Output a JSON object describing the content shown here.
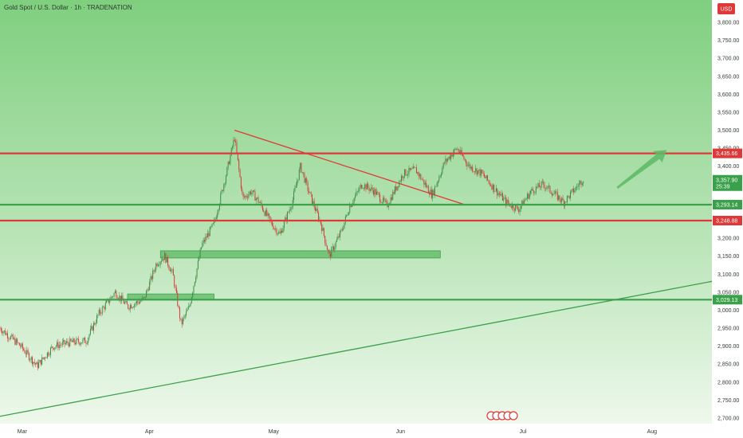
{
  "chart_data": {
    "type": "candlestick",
    "title": "Gold Spot / U.S. Dollar · 1h · TRADENATION",
    "currency": "USD",
    "x_labels": [
      "Mar",
      "Apr",
      "May",
      "Jun",
      "Jul",
      "Aug"
    ],
    "y_ticks": [
      "2,700.00",
      "2,750.00",
      "2,800.00",
      "2,850.00",
      "2,900.00",
      "2,950.00",
      "3,000.00",
      "3,050.00",
      "3,100.00",
      "3,150.00",
      "3,200.00",
      "3,250.00",
      "3,300.00",
      "3,350.00",
      "3,400.00",
      "3,450.00",
      "3,500.00",
      "3,550.00",
      "3,600.00",
      "3,650.00",
      "3,700.00",
      "3,750.00",
      "3,800.00"
    ],
    "ylim": [
      2700,
      3820
    ],
    "levels": [
      {
        "label": "3,435.66",
        "value": 3435.66,
        "color": "#e03838"
      },
      {
        "label": "3,293.14",
        "value": 3293.14,
        "color": "#3aa04a"
      },
      {
        "label": "3,248.88",
        "value": 3248.88,
        "color": "#e03838"
      },
      {
        "label": "3,029.13",
        "value": 3029.13,
        "color": "#3aa04a"
      }
    ],
    "current": {
      "label": "3,357.90",
      "countdown": "25:39",
      "value": 3357.9,
      "color": "#3aa04a"
    },
    "series": [
      {
        "date": "2025-02-24",
        "value": 2950
      },
      {
        "date": "2025-03-01",
        "value": 2900
      },
      {
        "date": "2025-03-05",
        "value": 2845
      },
      {
        "date": "2025-03-09",
        "value": 2900
      },
      {
        "date": "2025-03-13",
        "value": 2910
      },
      {
        "date": "2025-03-17",
        "value": 2915
      },
      {
        "date": "2025-03-20",
        "value": 2990
      },
      {
        "date": "2025-03-24",
        "value": 3050
      },
      {
        "date": "2025-03-27",
        "value": 3010
      },
      {
        "date": "2025-03-31",
        "value": 3030
      },
      {
        "date": "2025-04-03",
        "value": 3130
      },
      {
        "date": "2025-04-05",
        "value": 3150
      },
      {
        "date": "2025-04-07",
        "value": 3100
      },
      {
        "date": "2025-04-09",
        "value": 2960
      },
      {
        "date": "2025-04-11",
        "value": 3010
      },
      {
        "date": "2025-04-14",
        "value": 3180
      },
      {
        "date": "2025-04-17",
        "value": 3240
      },
      {
        "date": "2025-04-20",
        "value": 3380
      },
      {
        "date": "2025-04-22",
        "value": 3480
      },
      {
        "date": "2025-04-24",
        "value": 3310
      },
      {
        "date": "2025-04-26",
        "value": 3330
      },
      {
        "date": "2025-04-28",
        "value": 3300
      },
      {
        "date": "2025-05-01",
        "value": 3240
      },
      {
        "date": "2025-05-03",
        "value": 3210
      },
      {
        "date": "2025-05-06",
        "value": 3300
      },
      {
        "date": "2025-05-08",
        "value": 3400
      },
      {
        "date": "2025-05-10",
        "value": 3330
      },
      {
        "date": "2025-05-13",
        "value": 3240
      },
      {
        "date": "2025-05-15",
        "value": 3150
      },
      {
        "date": "2025-05-18",
        "value": 3220
      },
      {
        "date": "2025-05-20",
        "value": 3290
      },
      {
        "date": "2025-05-23",
        "value": 3350
      },
      {
        "date": "2025-05-26",
        "value": 3330
      },
      {
        "date": "2025-05-29",
        "value": 3290
      },
      {
        "date": "2025-06-02",
        "value": 3380
      },
      {
        "date": "2025-06-05",
        "value": 3390
      },
      {
        "date": "2025-06-09",
        "value": 3320
      },
      {
        "date": "2025-06-12",
        "value": 3410
      },
      {
        "date": "2025-06-15",
        "value": 3450
      },
      {
        "date": "2025-06-18",
        "value": 3400
      },
      {
        "date": "2025-06-21",
        "value": 3380
      },
      {
        "date": "2025-06-24",
        "value": 3340
      },
      {
        "date": "2025-06-27",
        "value": 3300
      },
      {
        "date": "2025-06-30",
        "value": 3280
      },
      {
        "date": "2025-07-03",
        "value": 3330
      },
      {
        "date": "2025-07-06",
        "value": 3350
      },
      {
        "date": "2025-07-09",
        "value": 3320
      },
      {
        "date": "2025-07-11",
        "value": 3300
      },
      {
        "date": "2025-07-14",
        "value": 3340
      },
      {
        "date": "2025-07-16",
        "value": 3370
      }
    ],
    "trendlines": [
      {
        "name": "descending-resistance",
        "color": "#e03838",
        "points": [
          [
            "2025-04-22",
            3500
          ],
          [
            "2025-06-17",
            3293
          ]
        ]
      },
      {
        "name": "ascending-support",
        "color": "#3aa04a",
        "points": [
          [
            "2025-02-24",
            2705
          ],
          [
            "2025-08-16",
            3080
          ]
        ]
      }
    ],
    "zones": [
      {
        "name": "zone-upper",
        "color": "#5cb864",
        "from": "2025-04-04",
        "to": "2025-06-11",
        "low": 3145,
        "high": 3165
      },
      {
        "name": "zone-lower",
        "color": "#5cb864",
        "from": "2025-03-27",
        "to": "2025-04-17",
        "low": 3030,
        "high": 3045
      }
    ],
    "arrow": {
      "color": "#5cb864",
      "from": [
        "2025-07-24",
        3340
      ],
      "to": [
        "2025-08-05",
        3445
      ]
    },
    "grid": false,
    "legend": "none"
  }
}
